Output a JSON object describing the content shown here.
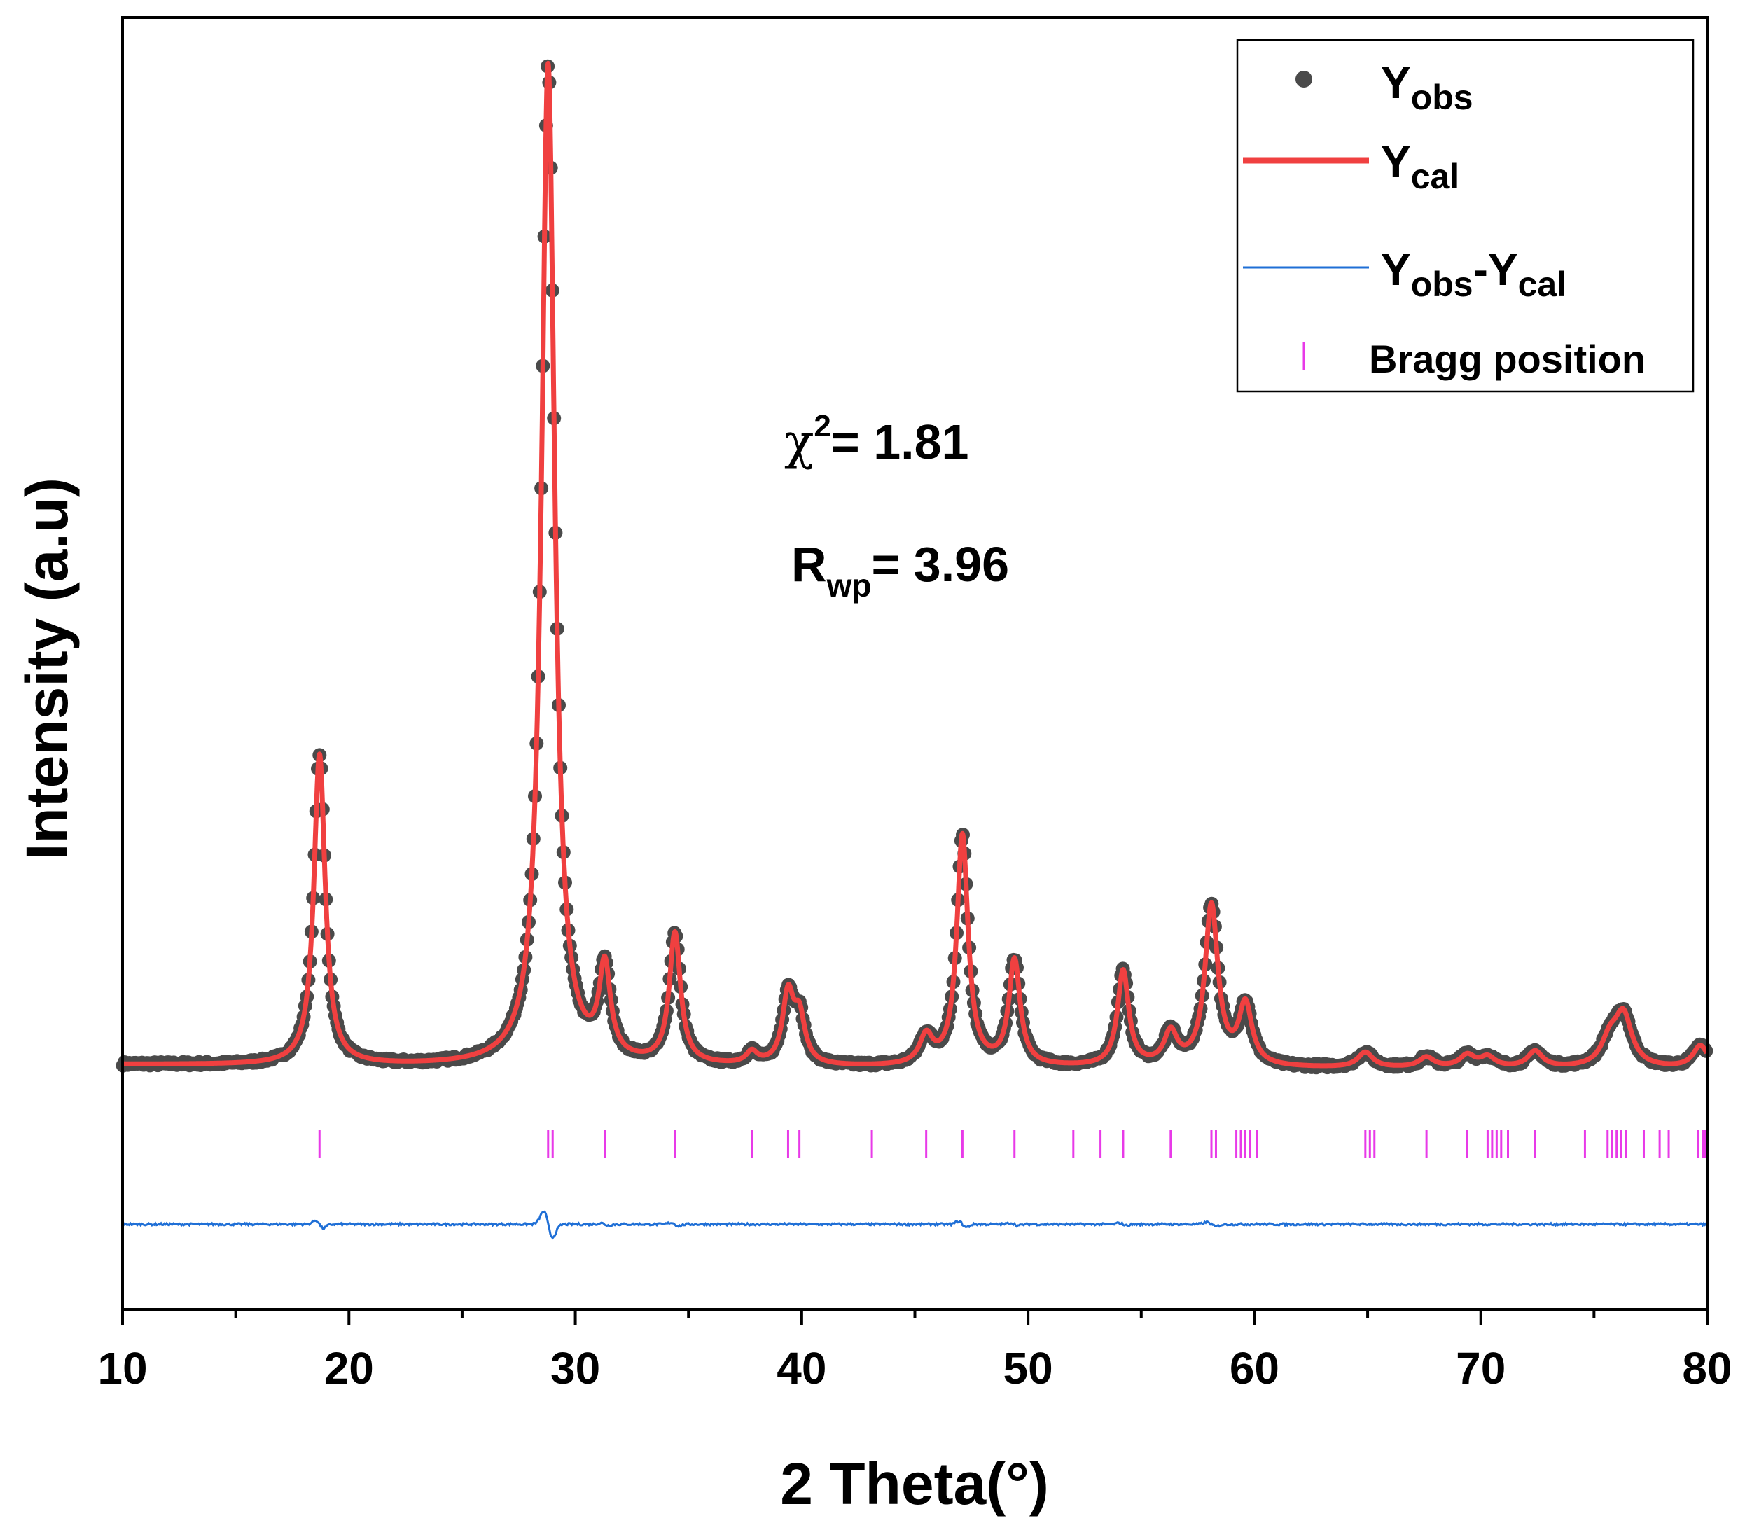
{
  "chart_data": {
    "type": "line",
    "title": "",
    "xlabel": "2 Theta(°)",
    "ylabel": "Intensity (a.u)",
    "xlim": [
      10,
      80
    ],
    "ylim": [
      -24,
      105
    ],
    "x_ticks": [
      10,
      20,
      30,
      40,
      50,
      60,
      70,
      80
    ],
    "x_minor_step": 5,
    "y_ticks_labeled": false,
    "grid": false,
    "legend_position": "top-right",
    "annotations": {
      "chi2_symbol": "χ",
      "chi2_sup": "2",
      "chi2_value": "= 1.81",
      "rwp_main": "R",
      "rwp_sub": "wp",
      "rwp_value": "= 3.96"
    },
    "legend": [
      {
        "key": "yobs",
        "main": "Y",
        "sub": "obs",
        "tail_sep": "",
        "tail_main": "",
        "tail_sub": "",
        "color": "#4a4a4a",
        "marker": "circle"
      },
      {
        "key": "ycal",
        "main": "Y",
        "sub": "cal",
        "tail_sep": "",
        "tail_main": "",
        "tail_sub": "",
        "color": "#f04040",
        "marker": "thick-line"
      },
      {
        "key": "diff",
        "main": "Y",
        "sub": "obs",
        "tail_sep": "-",
        "tail_main": "Y",
        "tail_sub": "cal",
        "color": "#1f6fd6",
        "marker": "thin-line"
      },
      {
        "key": "bragg",
        "main": "Bragg position",
        "sub": "",
        "tail_sep": "",
        "tail_main": "",
        "tail_sub": "",
        "color": "#e83ae8",
        "marker": "tick"
      }
    ],
    "series": [
      {
        "name": "Yobs",
        "color": "#4a4a4a"
      },
      {
        "name": "Ycal",
        "color": "#f04040"
      },
      {
        "name": "Yobs-Ycal",
        "color": "#1f6fd6"
      },
      {
        "name": "Bragg position",
        "color": "#e83ae8"
      }
    ],
    "baseline": 0,
    "difference_offset": -15.5,
    "bragg_level": -7.5,
    "peaks": [
      {
        "x": 18.7,
        "height": 31,
        "width": 0.3
      },
      {
        "x": 28.8,
        "height": 100,
        "width": 0.35
      },
      {
        "x": 31.3,
        "height": 9,
        "width": 0.3
      },
      {
        "x": 34.4,
        "height": 13,
        "width": 0.3
      },
      {
        "x": 37.8,
        "height": 1.2,
        "width": 0.3
      },
      {
        "x": 39.4,
        "height": 6.8,
        "width": 0.3
      },
      {
        "x": 39.9,
        "height": 4.5,
        "width": 0.3
      },
      {
        "x": 45.5,
        "height": 2.8,
        "width": 0.35
      },
      {
        "x": 47.1,
        "height": 23,
        "width": 0.3
      },
      {
        "x": 49.4,
        "height": 10.5,
        "width": 0.3
      },
      {
        "x": 54.2,
        "height": 9.5,
        "width": 0.3
      },
      {
        "x": 56.3,
        "height": 3.2,
        "width": 0.35
      },
      {
        "x": 58.1,
        "height": 16,
        "width": 0.35
      },
      {
        "x": 59.6,
        "height": 6,
        "width": 0.35
      },
      {
        "x": 64.9,
        "height": 1.5,
        "width": 0.4
      },
      {
        "x": 67.6,
        "height": 1.0,
        "width": 0.4
      },
      {
        "x": 69.4,
        "height": 1.2,
        "width": 0.4
      },
      {
        "x": 70.3,
        "height": 1.0,
        "width": 0.4
      },
      {
        "x": 72.4,
        "height": 1.6,
        "width": 0.4
      },
      {
        "x": 75.7,
        "height": 2.5,
        "width": 0.45
      },
      {
        "x": 76.3,
        "height": 5,
        "width": 0.45
      },
      {
        "x": 79.7,
        "height": 2.2,
        "width": 0.4
      }
    ],
    "bragg_positions": [
      18.7,
      28.8,
      29.0,
      31.3,
      34.4,
      37.8,
      39.4,
      39.9,
      43.1,
      45.5,
      47.1,
      49.4,
      52.0,
      53.2,
      54.2,
      56.3,
      58.1,
      58.3,
      59.2,
      59.4,
      59.6,
      59.8,
      60.1,
      64.9,
      65.1,
      65.3,
      67.6,
      69.4,
      70.3,
      70.5,
      70.7,
      70.9,
      71.2,
      72.4,
      74.6,
      75.6,
      75.8,
      76.0,
      76.2,
      76.4,
      77.2,
      77.9,
      78.3,
      79.6,
      79.8,
      79.9
    ]
  }
}
